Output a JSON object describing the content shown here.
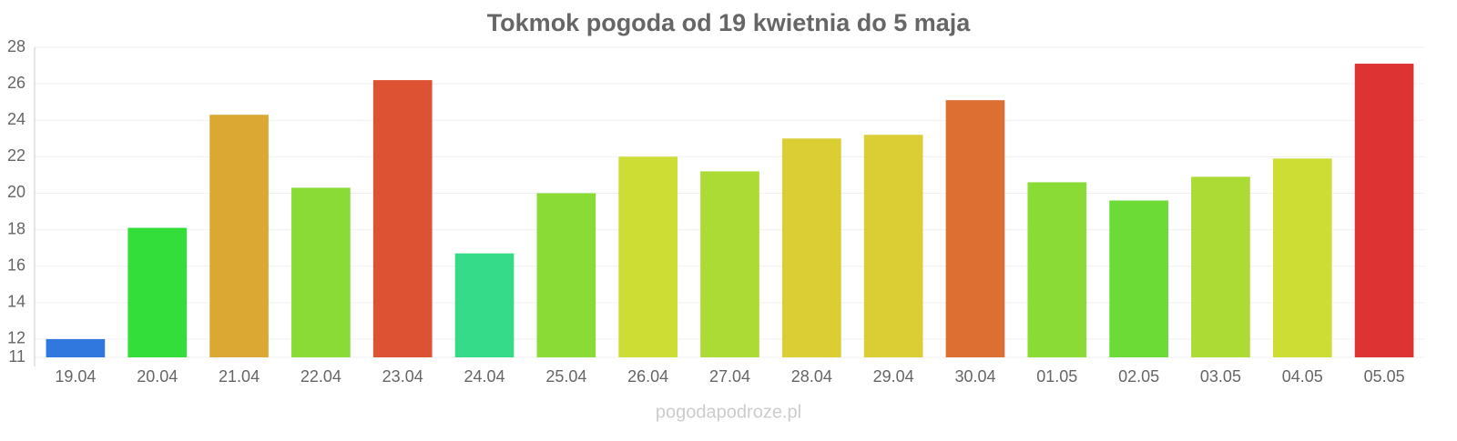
{
  "chart_data": {
    "type": "bar",
    "title": "Tokmok pogoda od 19 kwietnia do 5 maja",
    "categories": [
      "19.04",
      "20.04",
      "21.04",
      "22.04",
      "23.04",
      "24.04",
      "25.04",
      "26.04",
      "27.04",
      "28.04",
      "29.04",
      "30.04",
      "01.05",
      "02.05",
      "03.05",
      "04.05",
      "05.05"
    ],
    "values": [
      12.0,
      18.1,
      24.3,
      20.3,
      26.2,
      16.7,
      20.0,
      22.0,
      21.2,
      23.0,
      23.2,
      25.1,
      20.6,
      19.6,
      20.9,
      21.9,
      27.1
    ],
    "colors": [
      "#3077de",
      "#33dd3a",
      "#dba834",
      "#8adb36",
      "#dd5233",
      "#36db8a",
      "#8adb36",
      "#cddd33",
      "#addb36",
      "#dbcd34",
      "#dbcd34",
      "#dd6f33",
      "#8adb36",
      "#6ddb36",
      "#addb36",
      "#cddd33",
      "#dd3333"
    ],
    "ylim": [
      11,
      28
    ],
    "yticks": [
      11,
      12,
      14,
      16,
      18,
      20,
      22,
      24,
      26,
      28
    ],
    "grid": true,
    "footer": "pogodapodroze.pl"
  }
}
